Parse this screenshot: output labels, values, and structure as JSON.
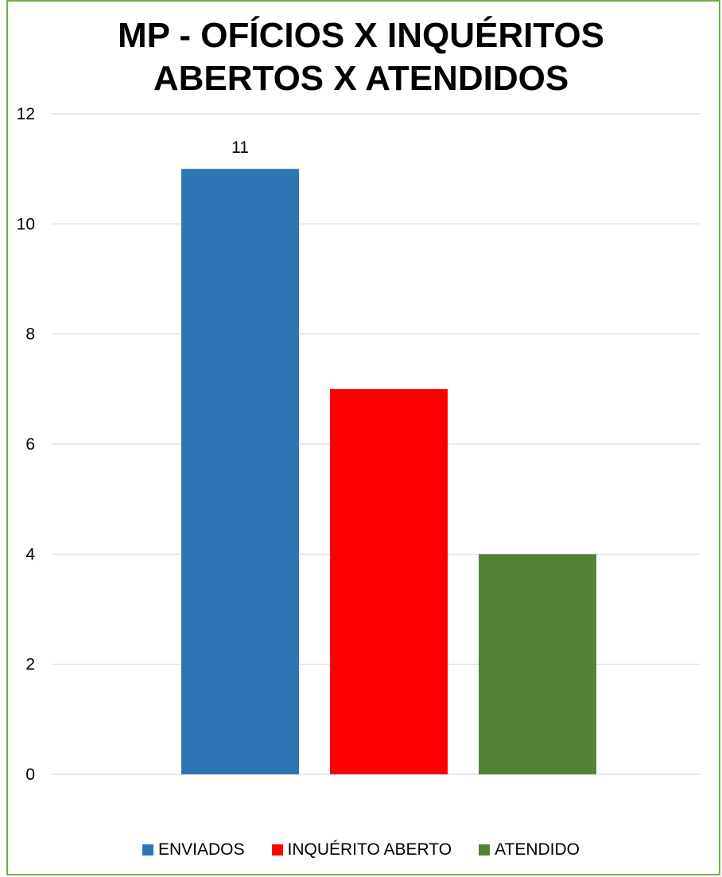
{
  "chart_data": {
    "type": "bar",
    "title_lines": [
      "MP - OFÍCIOS  X INQUÉRITOS",
      "ABERTOS X ATENDIDOS"
    ],
    "series": [
      {
        "name": "ENVIADOS",
        "value": 11,
        "color": "#2E75B6",
        "data_label": "11"
      },
      {
        "name": "INQUÉRITO ABERTO",
        "value": 7,
        "color": "#FF0000",
        "data_label": ""
      },
      {
        "name": "ATENDIDO",
        "value": 4,
        "color": "#548235",
        "data_label": ""
      }
    ],
    "ylim": [
      0,
      12
    ],
    "yticks": [
      0,
      2,
      4,
      6,
      8,
      10,
      12
    ],
    "grid": true,
    "legend_position": "bottom",
    "border_color": "#70AD47"
  }
}
